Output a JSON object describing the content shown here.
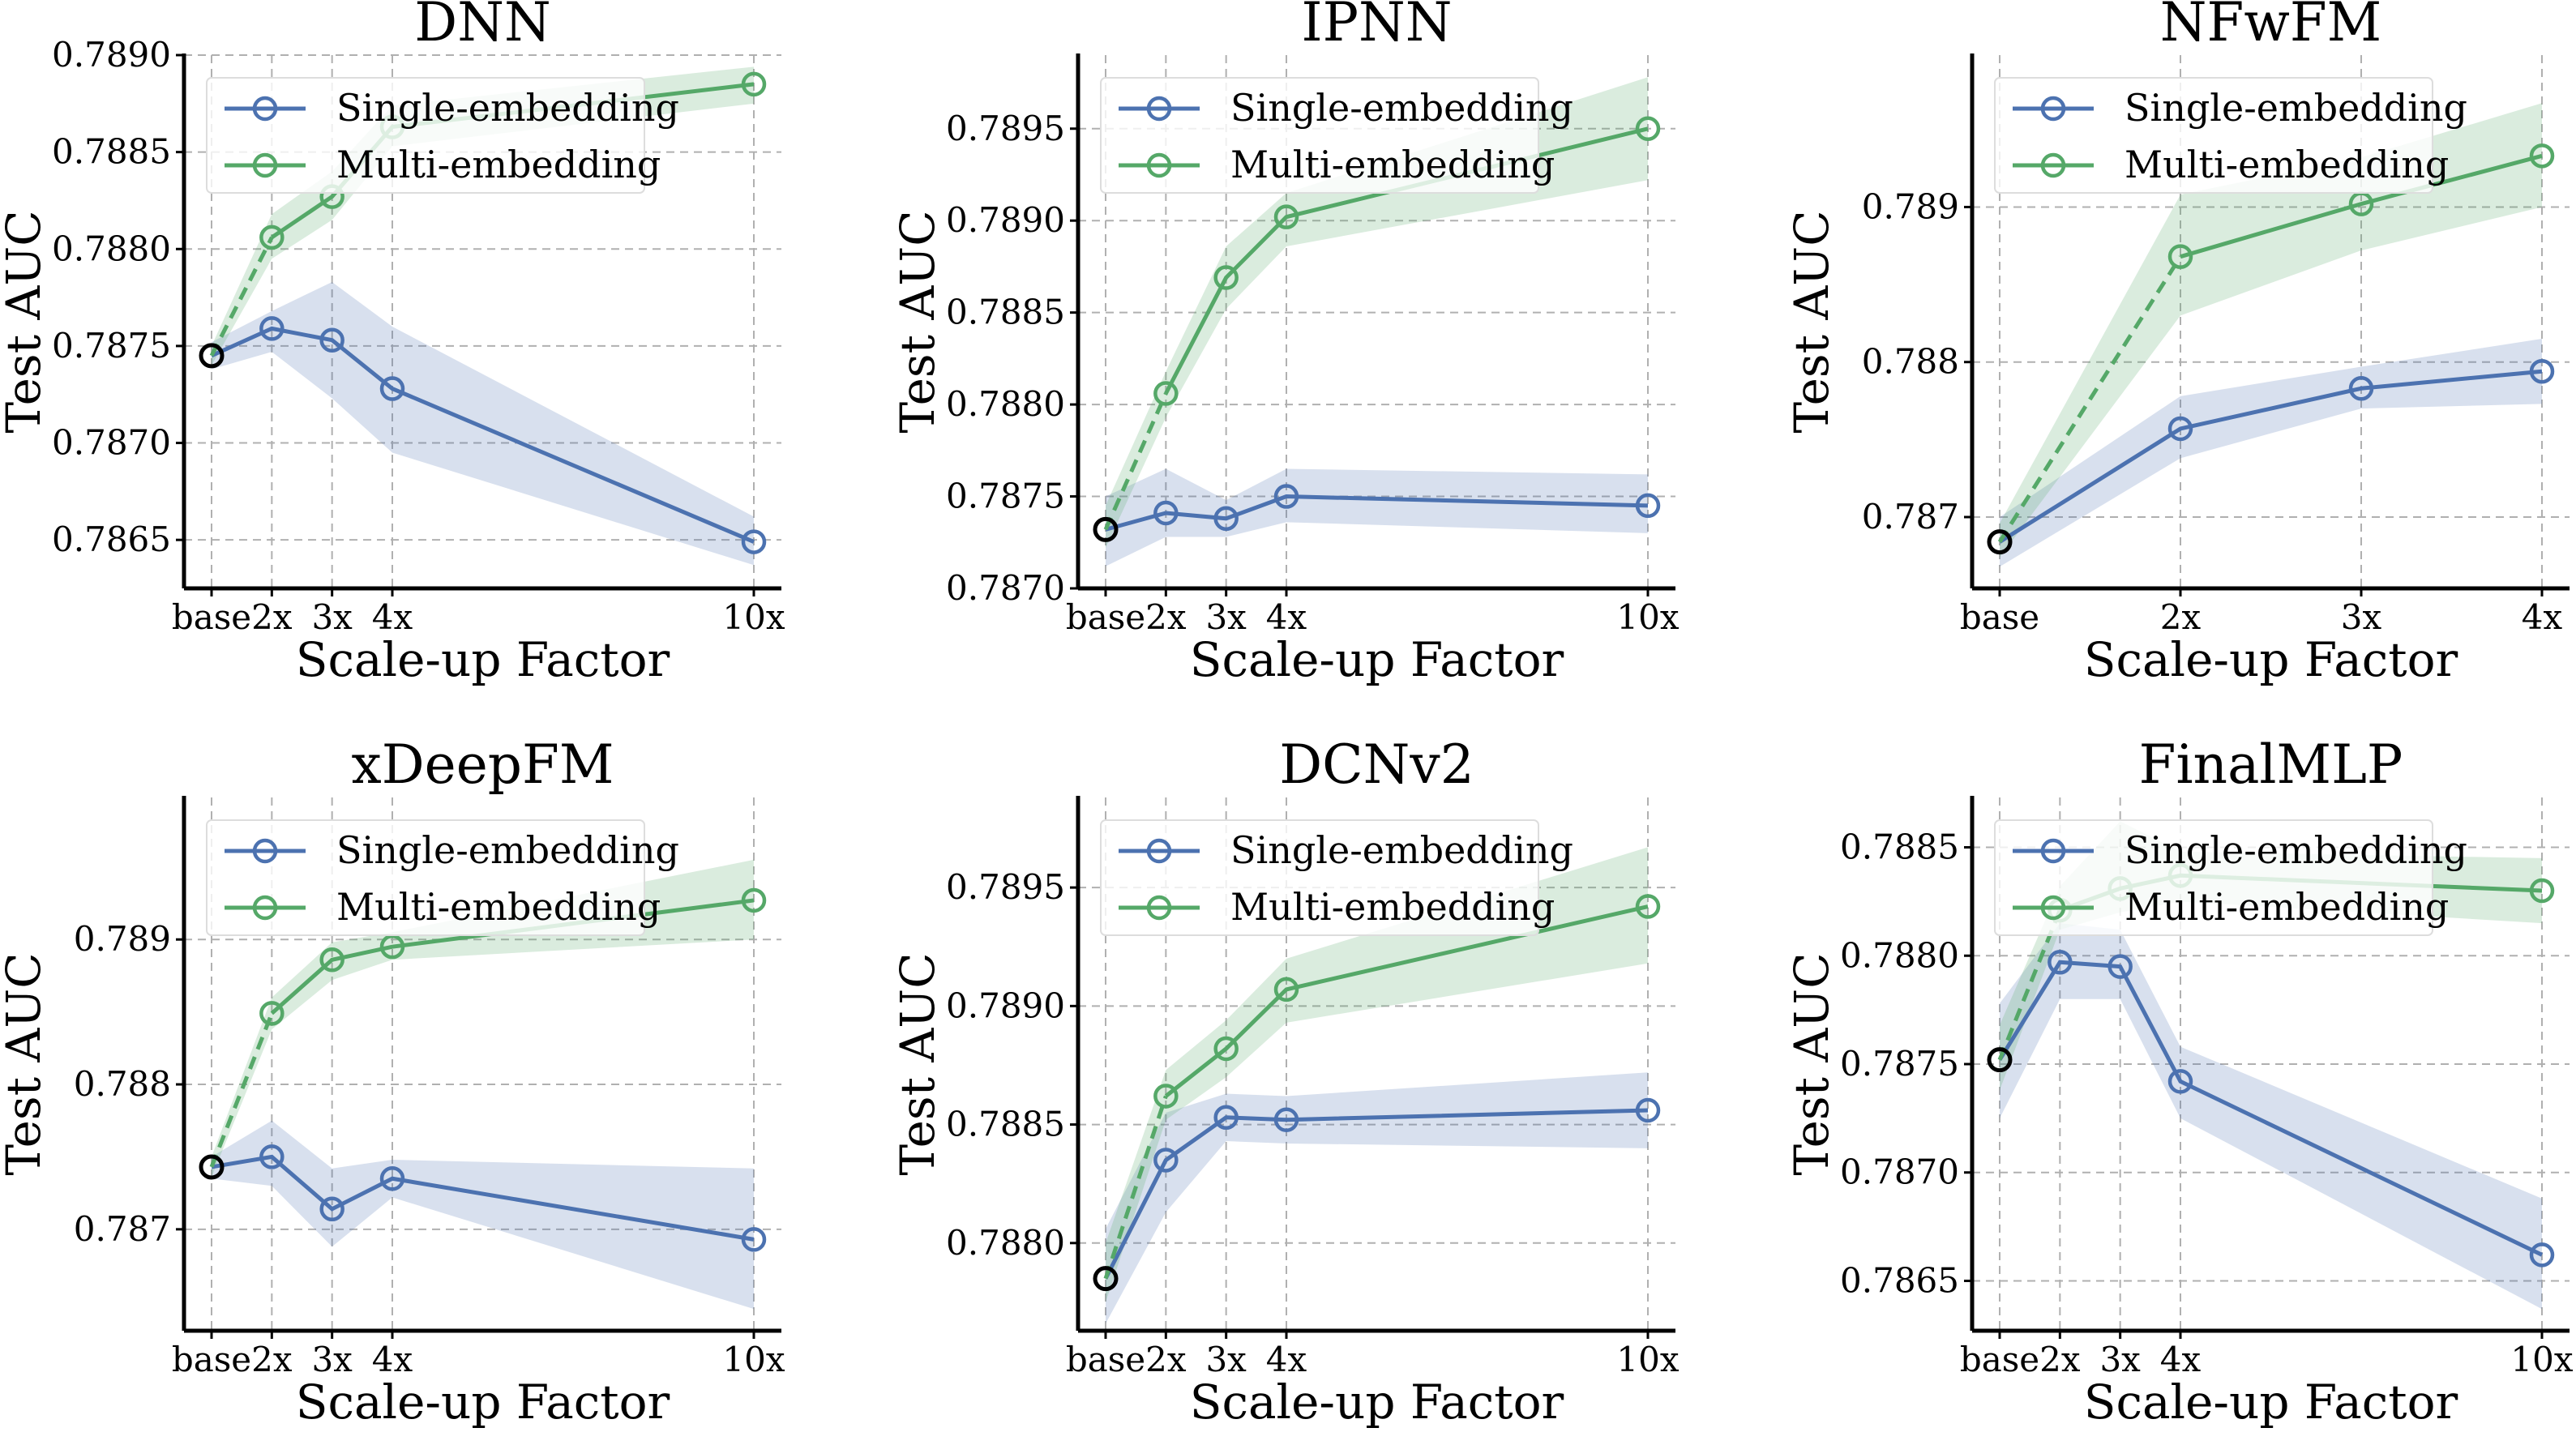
{
  "colors": {
    "single": "#4c72b0",
    "multi": "#55a868",
    "base_marker_edge": "#000000"
  },
  "legend": {
    "placement": "upper-left",
    "entries": [
      "Single-embedding",
      "Multi-embedding"
    ]
  },
  "chart_data": [
    {
      "type": "line",
      "title": "DNN",
      "xlabel": "Scale-up Factor",
      "ylabel": "Test AUC",
      "x": [
        "base",
        "2x",
        "3x",
        "4x",
        "10x"
      ],
      "xpos": [
        1,
        2,
        3,
        4,
        10
      ],
      "ylim": [
        0.78625,
        0.789
      ],
      "yticks": [
        0.7865,
        0.787,
        0.7875,
        0.788,
        0.7885,
        0.789
      ],
      "ytick_decimals": 4,
      "series": [
        {
          "name": "Single-embedding",
          "values": [
            0.78745,
            0.78759,
            0.78753,
            0.78728,
            0.78649
          ],
          "lower": [
            0.78738,
            0.78747,
            0.78723,
            0.78695,
            0.78637
          ],
          "upper": [
            0.78752,
            0.78768,
            0.78783,
            0.7876,
            0.78662
          ]
        },
        {
          "name": "Multi-embedding",
          "values": [
            0.78745,
            0.78806,
            0.78827,
            0.78863,
            0.78885
          ],
          "lower": [
            0.7874,
            0.78795,
            0.78815,
            0.78853,
            0.78875
          ],
          "upper": [
            0.7875,
            0.78818,
            0.7884,
            0.78874,
            0.78894
          ]
        }
      ]
    },
    {
      "type": "line",
      "title": "IPNN",
      "xlabel": "Scale-up Factor",
      "ylabel": "Test AUC",
      "x": [
        "base",
        "2x",
        "3x",
        "4x",
        "10x"
      ],
      "xpos": [
        1,
        2,
        3,
        4,
        10
      ],
      "ylim": [
        0.787,
        0.7899
      ],
      "yticks": [
        0.787,
        0.7875,
        0.788,
        0.7885,
        0.789,
        0.7895
      ],
      "ytick_decimals": 4,
      "series": [
        {
          "name": "Single-embedding",
          "values": [
            0.78732,
            0.78741,
            0.78738,
            0.7875,
            0.78745
          ],
          "lower": [
            0.78712,
            0.78728,
            0.78728,
            0.78736,
            0.7873
          ],
          "upper": [
            0.7875,
            0.78765,
            0.78748,
            0.78765,
            0.78762
          ]
        },
        {
          "name": "Multi-embedding",
          "values": [
            0.78732,
            0.78806,
            0.78869,
            0.78902,
            0.7895
          ],
          "lower": [
            0.78722,
            0.78793,
            0.78852,
            0.78886,
            0.78922
          ],
          "upper": [
            0.78745,
            0.78818,
            0.78886,
            0.78915,
            0.78978
          ]
        }
      ]
    },
    {
      "type": "line",
      "title": "NFwFM",
      "xlabel": "Scale-up Factor",
      "ylabel": "Test AUC",
      "x": [
        "base",
        "2x",
        "3x",
        "4x"
      ],
      "xpos": [
        1,
        2,
        3,
        4
      ],
      "ylim": [
        0.78654,
        0.78998
      ],
      "yticks": [
        0.787,
        0.788,
        0.789
      ],
      "ytick_decimals": 3,
      "series": [
        {
          "name": "Single-embedding",
          "values": [
            0.78684,
            0.78757,
            0.78783,
            0.78794
          ],
          "lower": [
            0.78668,
            0.78738,
            0.7877,
            0.78773
          ],
          "upper": [
            0.787,
            0.78778,
            0.78797,
            0.78815
          ]
        },
        {
          "name": "Multi-embedding",
          "values": [
            0.78684,
            0.78868,
            0.78902,
            0.78933
          ],
          "lower": [
            0.78674,
            0.7883,
            0.78872,
            0.789
          ],
          "upper": [
            0.78696,
            0.78908,
            0.78932,
            0.78967
          ]
        }
      ]
    },
    {
      "type": "line",
      "title": "xDeepFM",
      "xlabel": "Scale-up Factor",
      "ylabel": "Test AUC",
      "x": [
        "base",
        "2x",
        "3x",
        "4x",
        "10x"
      ],
      "xpos": [
        1,
        2,
        3,
        4,
        10
      ],
      "ylim": [
        0.7863,
        0.78998
      ],
      "yticks": [
        0.787,
        0.788,
        0.789
      ],
      "ytick_decimals": 3,
      "series": [
        {
          "name": "Single-embedding",
          "values": [
            0.78743,
            0.7875,
            0.78714,
            0.78735,
            0.78693
          ],
          "lower": [
            0.78735,
            0.7873,
            0.78688,
            0.78722,
            0.78645
          ],
          "upper": [
            0.7875,
            0.78775,
            0.78742,
            0.78748,
            0.78742
          ]
        },
        {
          "name": "Multi-embedding",
          "values": [
            0.78743,
            0.78849,
            0.78886,
            0.78895,
            0.78927
          ],
          "lower": [
            0.78736,
            0.78838,
            0.78872,
            0.78886,
            0.789
          ],
          "upper": [
            0.7875,
            0.7886,
            0.78898,
            0.78905,
            0.78955
          ]
        }
      ]
    },
    {
      "type": "line",
      "title": "DCNv2",
      "xlabel": "Scale-up Factor",
      "ylabel": "Test AUC",
      "x": [
        "base",
        "2x",
        "3x",
        "4x",
        "10x"
      ],
      "xpos": [
        1,
        2,
        3,
        4,
        10
      ],
      "ylim": [
        0.78763,
        0.78988
      ],
      "yticks": [
        0.788,
        0.7885,
        0.789,
        0.7895
      ],
      "ytick_decimals": 4,
      "series": [
        {
          "name": "Single-embedding",
          "values": [
            0.78785,
            0.78835,
            0.78853,
            0.78852,
            0.78856
          ],
          "lower": [
            0.78766,
            0.78813,
            0.78843,
            0.78842,
            0.7884
          ],
          "upper": [
            0.78806,
            0.78855,
            0.78863,
            0.78862,
            0.78872
          ]
        },
        {
          "name": "Multi-embedding",
          "values": [
            0.78785,
            0.78862,
            0.78882,
            0.78907,
            0.78942
          ],
          "lower": [
            0.78775,
            0.78852,
            0.7887,
            0.78893,
            0.78918
          ],
          "upper": [
            0.788,
            0.78873,
            0.78894,
            0.7892,
            0.78967
          ]
        }
      ]
    },
    {
      "type": "line",
      "title": "FinalMLP",
      "xlabel": "Scale-up Factor",
      "ylabel": "Test AUC",
      "x": [
        "base",
        "2x",
        "3x",
        "4x",
        "10x"
      ],
      "xpos": [
        1,
        2,
        3,
        4,
        10
      ],
      "ylim": [
        0.78627,
        0.78873
      ],
      "yticks": [
        0.7865,
        0.787,
        0.7875,
        0.788,
        0.7885
      ],
      "ytick_decimals": 4,
      "series": [
        {
          "name": "Single-embedding",
          "values": [
            0.78752,
            0.78797,
            0.78795,
            0.78742,
            0.78662
          ],
          "lower": [
            0.78725,
            0.7878,
            0.7878,
            0.78725,
            0.78637
          ],
          "upper": [
            0.78778,
            0.78815,
            0.78812,
            0.78758,
            0.78688
          ]
        },
        {
          "name": "Multi-embedding",
          "values": [
            0.78752,
            0.78821,
            0.78831,
            0.78837,
            0.7883
          ],
          "lower": [
            0.78738,
            0.78812,
            0.7882,
            0.78825,
            0.78815
          ],
          "upper": [
            0.78768,
            0.78832,
            0.78862,
            0.78848,
            0.78845
          ]
        }
      ]
    }
  ]
}
